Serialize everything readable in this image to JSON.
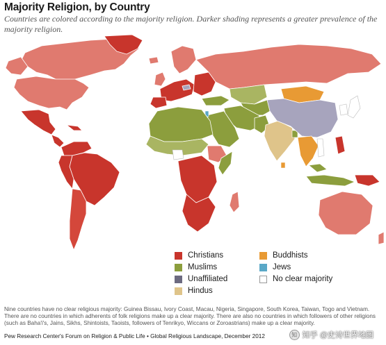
{
  "title": "Majority Religion, by Country",
  "subtitle": "Countries are colored according to the majority religion. Darker shading represents a greater prevalence of the majority religion.",
  "legend": {
    "items": [
      {
        "label": "Christians",
        "color": "#c8352c"
      },
      {
        "label": "Muslims",
        "color": "#8c9e3d"
      },
      {
        "label": "Unaffiliated",
        "color": "#6c6a80"
      },
      {
        "label": "Hindus",
        "color": "#dfc48a"
      },
      {
        "label": "Buddhists",
        "color": "#e89a34"
      },
      {
        "label": "Jews",
        "color": "#5aa8c7"
      },
      {
        "label": "No clear majority",
        "color": "#ffffff"
      }
    ]
  },
  "map_colors": {
    "christian_dark": "#c8352c",
    "christian_light": "#e07a6f",
    "muslim": "#8c9e3d",
    "muslim_light": "#a9b562",
    "unaffiliated": "#a7a4bd",
    "hindu": "#dfc48a",
    "buddhist": "#e89a34",
    "buddhist_light": "#f0b45a",
    "jewish": "#5aa8c7",
    "none": "#ffffff",
    "border": "#ffffff"
  },
  "note": "Nine countries have no clear religious majority: Guinea Bissau, Ivory Coast, Macau, Nigeria, Singapore, South Korea, Taiwan, Togo and Vietnam. There are no countries in which adherents of folk religions make up a clear majority. There are also no countries in which followers of other religions (such as Baha'i's, Jains, Sikhs, Shintoists, Taoists, followers of Tenrikyo, Wiccans or Zoroastrians) make up a clear majority.",
  "source": "Pew Research Center's Forum on Religion & Public Life • Global Religious Landscape, December 2012",
  "watermark": "知乎 @史诗世界地图"
}
